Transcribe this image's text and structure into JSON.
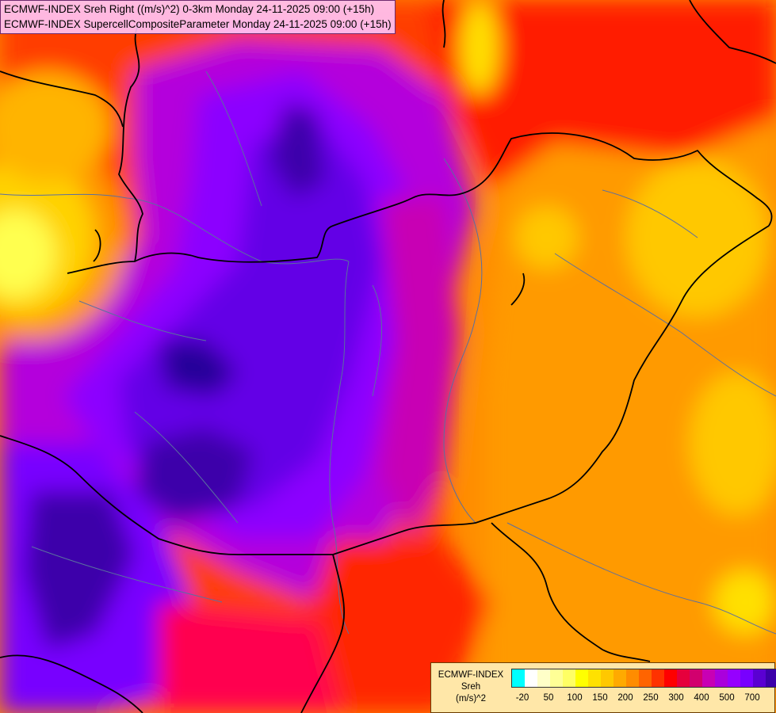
{
  "titles": {
    "line1": "ECMWF-INDEX Sreh Right ((m/s)^2) 0-3km Monday 24-11-2025 09:00 (+15h)",
    "line2": "ECMWF-INDEX SupercellCompositeParameter Monday 24-11-2025 09:00 (+15h)"
  },
  "legend": {
    "name": "ECMWF-INDEX",
    "param": "Sreh",
    "unit": "(m/s)^2",
    "colors": [
      "#00ffff",
      "#ffffff",
      "#ffffc8",
      "#ffff96",
      "#ffff64",
      "#ffff00",
      "#ffe100",
      "#ffc800",
      "#ffaa00",
      "#ff8c00",
      "#ff6400",
      "#ff3200",
      "#ff0000",
      "#e6003c",
      "#d2006e",
      "#c800b4",
      "#aa00dc",
      "#9600ff",
      "#7800ff",
      "#5a00d2",
      "#3c00aa",
      "#1e0078"
    ],
    "ticks": [
      "-20",
      "50",
      "100",
      "150",
      "200",
      "250",
      "300",
      "400",
      "500",
      "700"
    ]
  }
}
